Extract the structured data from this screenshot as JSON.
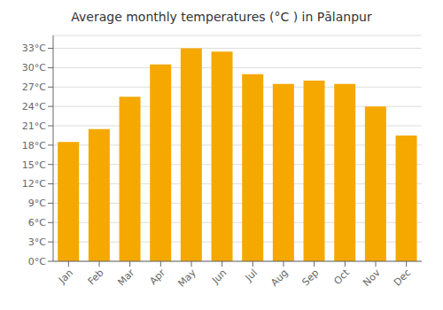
{
  "chart_data": {
    "type": "bar",
    "title": "Average monthly temperatures (°C ) in Pālanpur",
    "categories": [
      "Jan",
      "Feb",
      "Mar",
      "Apr",
      "May",
      "Jun",
      "Jul",
      "Aug",
      "Sep",
      "Oct",
      "Nov",
      "Dec"
    ],
    "values": [
      18.5,
      20.5,
      25.5,
      30.5,
      33.0,
      32.5,
      29.0,
      27.5,
      28.0,
      27.5,
      24.0,
      19.5
    ],
    "color": "#F5A800",
    "ylim": [
      0,
      35
    ],
    "yticks": [
      {
        "value": 0,
        "label": "0°C"
      },
      {
        "value": 3,
        "label": "3°C"
      },
      {
        "value": 6,
        "label": "6°C"
      },
      {
        "value": 9,
        "label": "9°C"
      },
      {
        "value": 12,
        "label": "12°C"
      },
      {
        "value": 15,
        "label": "15°C"
      },
      {
        "value": 18,
        "label": "18°C"
      },
      {
        "value": 21,
        "label": "21°C"
      },
      {
        "value": 24,
        "label": "24°C"
      },
      {
        "value": 27,
        "label": "27°C"
      },
      {
        "value": 30,
        "label": "30°C"
      },
      {
        "value": 33,
        "label": "33°C"
      }
    ],
    "grid": true
  }
}
